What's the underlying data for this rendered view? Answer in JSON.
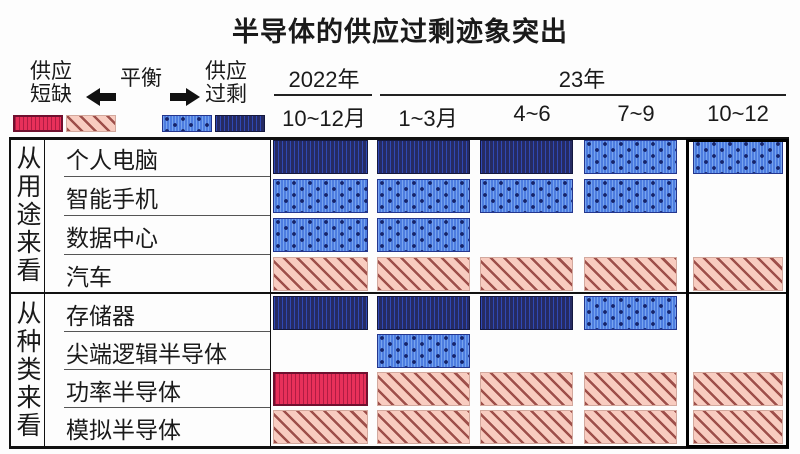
{
  "title": "半导体的供应过剩迹象突出",
  "legend": {
    "shortage_lines": [
      "供应",
      "短缺"
    ],
    "balance_label": "平衡",
    "surplus_lines": [
      "供应",
      "过剩"
    ],
    "swatches": [
      {
        "name": "shortage-strong",
        "label": "供应短缺(严重)",
        "color": "#e8305a"
      },
      {
        "name": "shortage",
        "label": "供应短缺",
        "color": "#f8ccc0"
      },
      {
        "name": "surplus",
        "label": "供应过剩",
        "color": "#4d7de0"
      },
      {
        "name": "surplus-strong",
        "label": "供应过剩(严重)",
        "color": "#262b62"
      }
    ]
  },
  "header": {
    "year_2022": "2022年",
    "year_23": "23年",
    "quarters": [
      "10~12月",
      "1~3月",
      "4~6",
      "7~9",
      "10~12"
    ]
  },
  "chart_data": {
    "type": "heatmap",
    "title": "半导体的供应过剩迹象突出",
    "columns": [
      "2022年10~12月",
      "23年1~3月",
      "23年4~6",
      "23年7~9",
      "23年10~12"
    ],
    "status_legend": {
      "shortage-strong": "供应短缺(严重)",
      "shortage": "供应短缺",
      "balance": "平衡",
      "surplus": "供应过剩",
      "surplus-strong": "供应过剩(严重)"
    },
    "groups": [
      {
        "label": "从用途来看",
        "rows": [
          {
            "label": "个人电脑",
            "cells": [
              "surplus-strong",
              "surplus-strong",
              "surplus-strong",
              "surplus",
              "surplus"
            ]
          },
          {
            "label": "智能手机",
            "cells": [
              "surplus",
              "surplus",
              "surplus",
              "surplus",
              "balance"
            ]
          },
          {
            "label": "数据中心",
            "cells": [
              "surplus",
              "surplus",
              "balance",
              "balance",
              "balance"
            ]
          },
          {
            "label": "汽车",
            "cells": [
              "shortage",
              "shortage",
              "shortage",
              "shortage",
              "shortage"
            ]
          }
        ]
      },
      {
        "label": "从种类来看",
        "rows": [
          {
            "label": "存储器",
            "cells": [
              "surplus-strong",
              "surplus-strong",
              "surplus-strong",
              "surplus",
              "balance"
            ]
          },
          {
            "label": "尖端逻辑半导体",
            "cells": [
              "balance",
              "surplus",
              "balance",
              "balance",
              "balance"
            ]
          },
          {
            "label": "功率半导体",
            "cells": [
              "shortage-strong",
              "shortage",
              "shortage",
              "shortage",
              "shortage"
            ]
          },
          {
            "label": "模拟半导体",
            "cells": [
              "shortage",
              "shortage",
              "shortage",
              "shortage",
              "shortage"
            ]
          }
        ]
      }
    ]
  },
  "colors": {
    "shortage_strong": "#e8305a",
    "shortage_base": "#f8ccc0",
    "shortage_stripe": "#9e4f4a",
    "surplus_base": "#4d7de0",
    "surplus_dot": "#16246a",
    "surplus_strong": "#262b62",
    "text": "#1a1a1a"
  }
}
